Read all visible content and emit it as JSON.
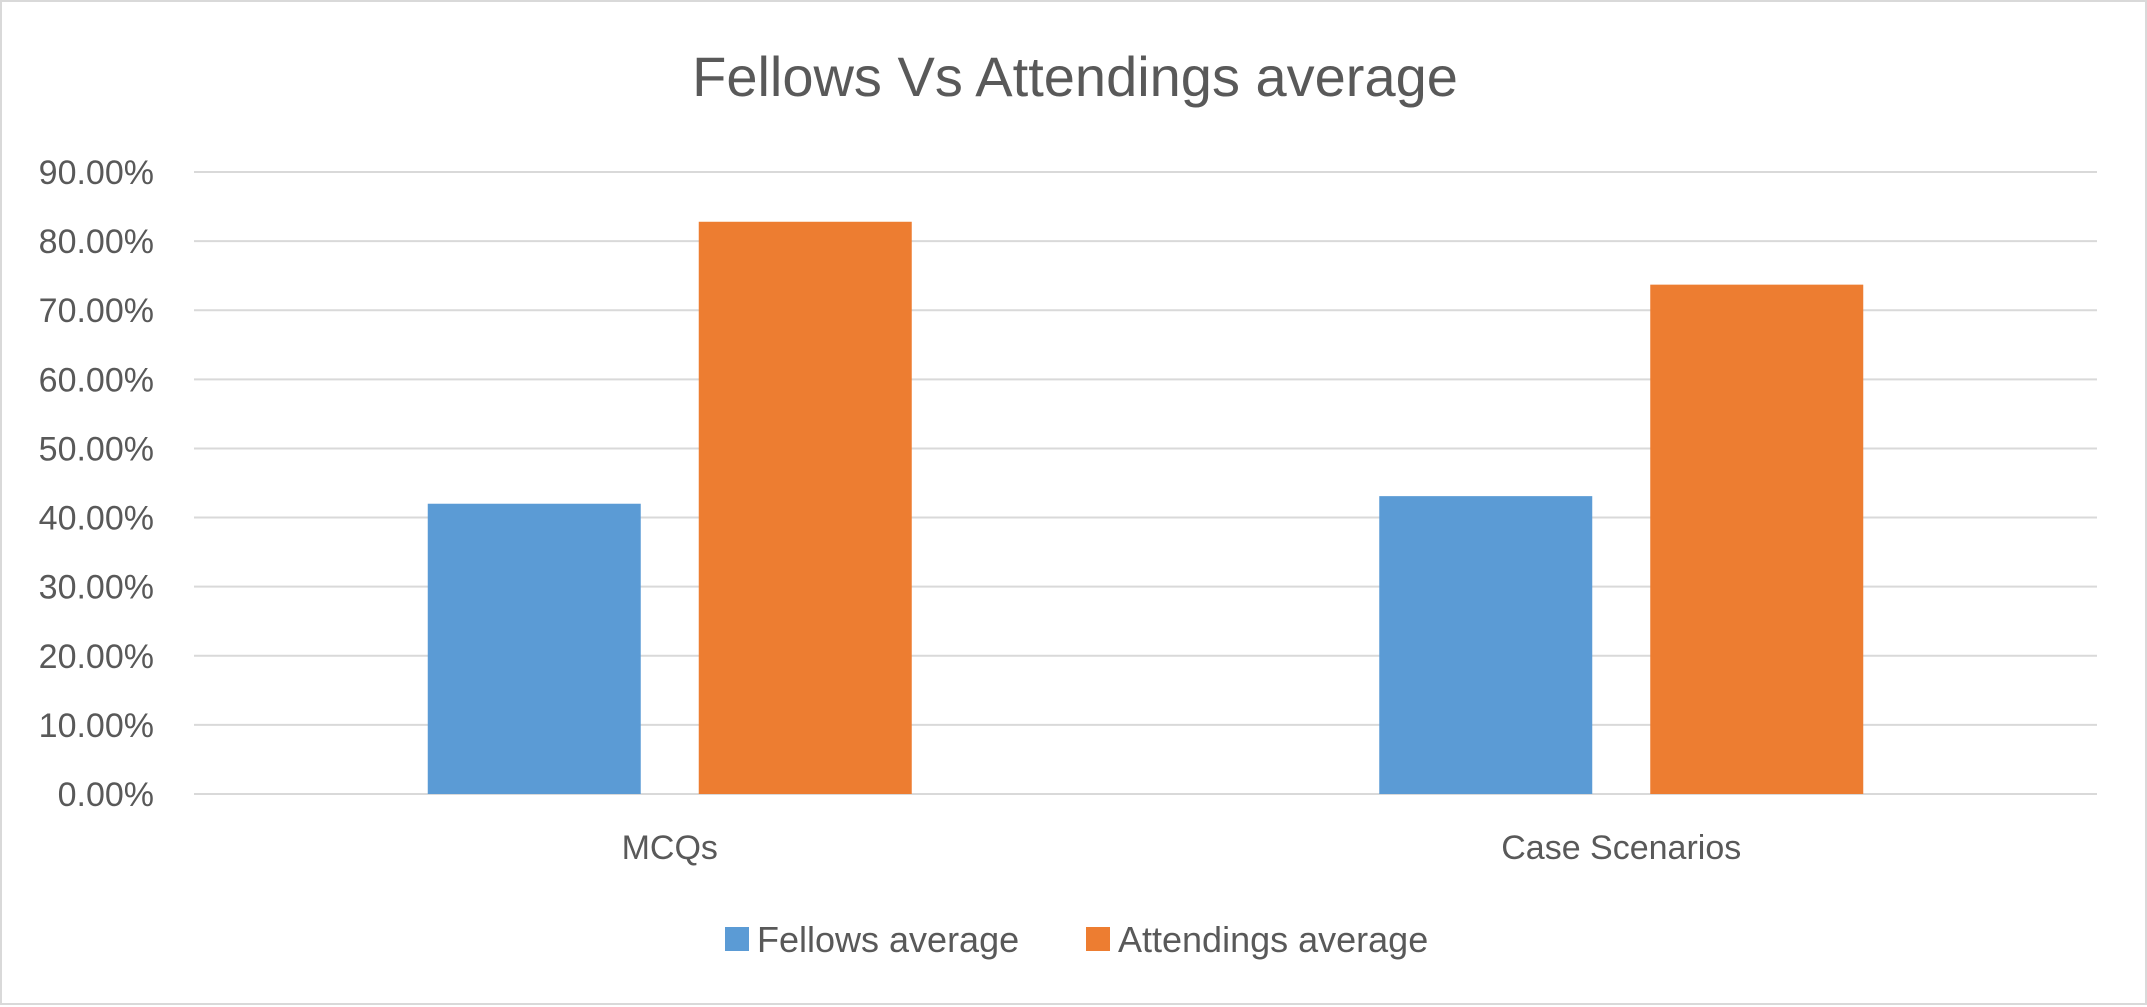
{
  "chart_data": {
    "type": "bar",
    "title": "Fellows Vs Attendings average",
    "xlabel": "",
    "ylabel": "",
    "categories": [
      "MCQs",
      "Case Scenarios"
    ],
    "series": [
      {
        "name": "Fellows average",
        "values": [
          42.0,
          43.1
        ],
        "color": "#5b9bd5"
      },
      {
        "name": "Attendings average",
        "values": [
          82.8,
          73.7
        ],
        "color": "#ed7d31"
      }
    ],
    "ylim": [
      0,
      90
    ],
    "y_ticks": [
      "0.00%",
      "10.00%",
      "20.00%",
      "30.00%",
      "40.00%",
      "50.00%",
      "60.00%",
      "70.00%",
      "80.00%",
      "90.00%"
    ],
    "grid": true,
    "legend_position": "bottom"
  }
}
